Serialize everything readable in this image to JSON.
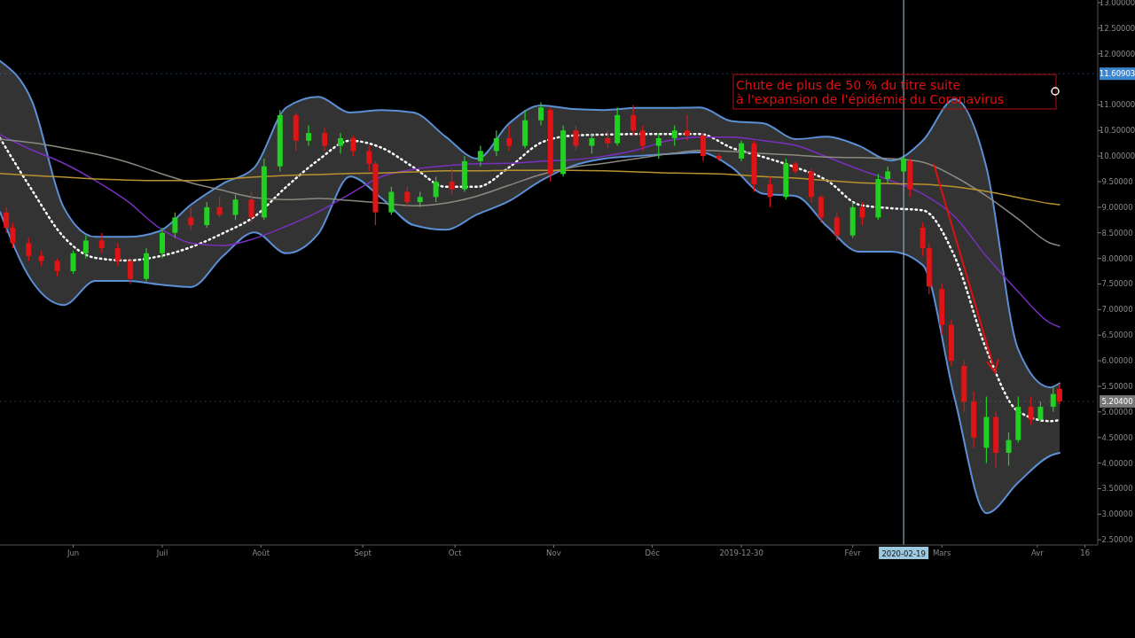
{
  "chart_data": {
    "type": "candlestick",
    "annotations": [
      "Chute de plus de 50 % du titre suite\nà l'expansion de l'épidémie du Coronavirus"
    ],
    "x": [
      "2019-05-11",
      "2019-05-21",
      "2019-05-31",
      "2019-06-10",
      "2019-06-20",
      "2019-06-30",
      "2019-07-10",
      "2019-07-20",
      "2019-07-30",
      "2019-08-09",
      "2019-08-19",
      "2019-08-29",
      "2019-09-08",
      "2019-09-18",
      "2019-09-28",
      "2019-10-08",
      "2019-10-18",
      "2019-10-28",
      "2019-11-07",
      "2019-11-17",
      "2019-11-27",
      "2019-12-07",
      "2019-12-17",
      "2019-12-27",
      "2020-01-06",
      "2020-01-16",
      "2020-01-26",
      "2020-02-05",
      "2020-02-15",
      "2020-02-25",
      "2020-03-06",
      "2020-03-16",
      "2020-03-26",
      "2020-04-05",
      "2020-04-08"
    ],
    "series": [
      {
        "x": [
          "2019-05-13",
          "2019-05-15",
          "2019-05-20",
          "2019-05-24",
          "2019-05-29",
          "2019-06-03",
          "2019-06-07",
          "2019-06-12",
          "2019-06-17",
          "2019-06-21",
          "2019-06-26",
          "2019-07-01",
          "2019-07-05",
          "2019-07-10",
          "2019-07-15",
          "2019-07-19",
          "2019-07-24",
          "2019-07-29",
          "2019-08-02",
          "2019-08-07",
          "2019-08-12",
          "2019-08-16",
          "2019-08-21",
          "2019-08-26",
          "2019-08-30",
          "2019-09-04",
          "2019-09-06",
          "2019-09-11",
          "2019-09-16",
          "2019-09-20",
          "2019-09-25",
          "2019-09-30",
          "2019-10-04",
          "2019-10-09",
          "2019-10-14",
          "2019-10-18",
          "2019-10-23",
          "2019-10-28",
          "2019-10-31",
          "2019-11-04",
          "2019-11-08",
          "2019-11-13",
          "2019-11-18",
          "2019-11-21",
          "2019-11-26",
          "2019-11-29",
          "2019-12-04",
          "2019-12-09",
          "2019-12-13",
          "2019-12-18",
          "2019-12-23",
          "2019-12-30",
          "2020-01-03",
          "2020-01-08",
          "2020-01-13",
          "2020-01-16",
          "2020-01-21",
          "2020-01-24",
          "2020-01-29",
          "2020-02-03",
          "2020-02-06",
          "2020-02-11",
          "2020-02-14",
          "2020-02-19",
          "2020-02-21",
          "2020-02-25",
          "2020-02-27",
          "2020-03-02",
          "2020-03-05",
          "2020-03-09",
          "2020-03-12",
          "2020-03-16",
          "2020-03-19",
          "2020-03-23",
          "2020-03-26",
          "2020-03-30",
          "2020-04-02",
          "2020-04-06",
          "2020-04-08"
        ],
        "ohlc": [
          [
            8.9,
            9.0,
            8.5,
            8.6
          ],
          [
            8.6,
            8.7,
            8.2,
            8.3
          ],
          [
            8.3,
            8.4,
            7.95,
            8.05
          ],
          [
            8.05,
            8.15,
            7.85,
            7.95
          ],
          [
            7.95,
            8.0,
            7.65,
            7.75
          ],
          [
            7.75,
            8.15,
            7.7,
            8.1
          ],
          [
            8.1,
            8.45,
            8.0,
            8.35
          ],
          [
            8.35,
            8.5,
            8.1,
            8.2
          ],
          [
            8.2,
            8.3,
            7.85,
            7.95
          ],
          [
            7.95,
            8.0,
            7.5,
            7.6
          ],
          [
            7.6,
            8.2,
            7.55,
            8.1
          ],
          [
            8.1,
            8.6,
            8.0,
            8.5
          ],
          [
            8.5,
            8.9,
            8.4,
            8.8
          ],
          [
            8.8,
            9.0,
            8.55,
            8.65
          ],
          [
            8.65,
            9.1,
            8.6,
            9.0
          ],
          [
            9.0,
            9.2,
            8.8,
            8.85
          ],
          [
            8.85,
            9.25,
            8.75,
            9.15
          ],
          [
            9.15,
            9.3,
            8.7,
            8.8
          ],
          [
            8.8,
            9.95,
            8.75,
            9.8
          ],
          [
            9.8,
            10.9,
            9.7,
            10.8
          ],
          [
            10.8,
            10.85,
            10.1,
            10.3
          ],
          [
            10.3,
            10.6,
            10.2,
            10.45
          ],
          [
            10.45,
            10.55,
            10.1,
            10.2
          ],
          [
            10.2,
            10.45,
            10.05,
            10.35
          ],
          [
            10.35,
            10.4,
            10.0,
            10.1
          ],
          [
            10.1,
            10.2,
            9.7,
            9.85
          ],
          [
            9.85,
            9.9,
            8.65,
            8.9
          ],
          [
            8.9,
            9.4,
            8.85,
            9.3
          ],
          [
            9.3,
            9.4,
            9.0,
            9.1
          ],
          [
            9.1,
            9.3,
            9.0,
            9.2
          ],
          [
            9.2,
            9.6,
            9.1,
            9.5
          ],
          [
            9.5,
            9.75,
            9.25,
            9.35
          ],
          [
            9.35,
            10.0,
            9.3,
            9.9
          ],
          [
            9.9,
            10.2,
            9.8,
            10.1
          ],
          [
            10.1,
            10.5,
            10.0,
            10.35
          ],
          [
            10.35,
            10.6,
            10.1,
            10.2
          ],
          [
            10.2,
            10.9,
            10.15,
            10.7
          ],
          [
            10.7,
            11.05,
            10.6,
            10.95
          ],
          [
            10.9,
            10.95,
            9.5,
            9.65
          ],
          [
            9.65,
            10.6,
            9.6,
            10.5
          ],
          [
            10.5,
            10.6,
            10.1,
            10.2
          ],
          [
            10.2,
            10.45,
            10.05,
            10.35
          ],
          [
            10.35,
            10.5,
            10.15,
            10.25
          ],
          [
            10.25,
            10.95,
            10.2,
            10.8
          ],
          [
            10.8,
            11.0,
            10.4,
            10.5
          ],
          [
            10.5,
            10.6,
            10.1,
            10.2
          ],
          [
            10.2,
            10.45,
            9.95,
            10.35
          ],
          [
            10.35,
            10.6,
            10.2,
            10.5
          ],
          [
            10.5,
            10.8,
            10.3,
            10.4
          ],
          [
            10.4,
            10.45,
            9.9,
            10.0
          ],
          [
            10.0,
            10.05,
            9.9,
            9.95
          ],
          [
            9.95,
            10.3,
            9.9,
            10.25
          ],
          [
            10.25,
            10.3,
            9.3,
            9.45
          ],
          [
            9.45,
            9.6,
            9.0,
            9.2
          ],
          [
            9.2,
            9.95,
            9.15,
            9.85
          ],
          [
            9.85,
            9.9,
            9.65,
            9.7
          ],
          [
            9.7,
            9.75,
            9.1,
            9.2
          ],
          [
            9.2,
            9.25,
            8.7,
            8.8
          ],
          [
            8.8,
            8.9,
            8.35,
            8.45
          ],
          [
            8.45,
            9.1,
            8.4,
            9.0
          ],
          [
            9.0,
            9.1,
            8.65,
            8.8
          ],
          [
            8.8,
            9.65,
            8.75,
            9.55
          ],
          [
            9.55,
            9.8,
            9.45,
            9.7
          ],
          [
            9.7,
            10.0,
            9.65,
            9.95
          ],
          [
            9.9,
            9.95,
            9.2,
            9.35
          ],
          [
            8.6,
            8.7,
            8.05,
            8.2
          ],
          [
            8.2,
            8.3,
            7.3,
            7.45
          ],
          [
            7.4,
            7.5,
            6.5,
            6.7
          ],
          [
            6.7,
            6.8,
            5.9,
            6.0
          ],
          [
            5.9,
            6.0,
            5.0,
            5.2
          ],
          [
            5.2,
            5.4,
            4.3,
            4.5
          ],
          [
            4.3,
            5.3,
            4.0,
            4.9
          ],
          [
            4.9,
            5.0,
            3.9,
            4.2
          ],
          [
            4.2,
            4.6,
            3.95,
            4.45
          ],
          [
            4.45,
            5.3,
            4.4,
            5.1
          ],
          [
            5.1,
            5.3,
            4.75,
            4.85
          ],
          [
            4.85,
            5.2,
            4.8,
            5.1
          ],
          [
            5.1,
            5.5,
            5.0,
            5.35
          ],
          [
            5.45,
            5.55,
            5.15,
            5.204
          ]
        ]
      },
      {
        "type": "line",
        "color": "#ffffff",
        "line_style": "dotted",
        "values": [
          10.35,
          9.34,
          8.42,
          8.01,
          7.96,
          8.04,
          8.22,
          8.49,
          8.82,
          9.4,
          9.92,
          10.3,
          10.16,
          9.78,
          9.4,
          9.4,
          9.78,
          10.26,
          10.4,
          10.42,
          10.43,
          10.43,
          10.43,
          10.16,
          9.98,
          9.78,
          9.52,
          9.05,
          8.98,
          8.94,
          8.04,
          6.22,
          5.01,
          4.82,
          4.84
        ],
        "upper": [
          11.86,
          11.08,
          9.0,
          8.42,
          8.42,
          8.53,
          9.05,
          9.46,
          9.78,
          10.95,
          11.16,
          10.85,
          10.9,
          10.85,
          10.38,
          9.95,
          10.64,
          10.99,
          10.92,
          10.9,
          10.94,
          10.94,
          10.95,
          10.68,
          10.64,
          10.33,
          10.38,
          10.2,
          9.91,
          10.3,
          11.11,
          9.78,
          6.22,
          5.48,
          5.56
        ],
        "lower": [
          8.91,
          7.56,
          7.09,
          7.56,
          7.56,
          7.49,
          7.44,
          8.04,
          8.51,
          8.1,
          8.48,
          9.6,
          9.17,
          8.65,
          8.56,
          8.86,
          9.12,
          9.52,
          9.81,
          9.95,
          10.0,
          10.04,
          10.07,
          9.78,
          9.26,
          9.22,
          8.62,
          8.13,
          8.13,
          7.87,
          5.27,
          3.02,
          3.62,
          4.14,
          4.2
        ]
      },
      {
        "type": "line",
        "color": "#5b8fd6",
        "line_style": "solid",
        "values": [
          11.86,
          11.08,
          9.0,
          8.42,
          8.42,
          8.53,
          9.05,
          9.46,
          9.78,
          10.95,
          11.16,
          10.85,
          10.9,
          10.85,
          10.38,
          9.95,
          10.64,
          10.99,
          10.92,
          10.9,
          10.94,
          10.94,
          10.95,
          10.68,
          10.64,
          10.33,
          10.38,
          10.2,
          9.91,
          10.3,
          11.11,
          9.78,
          6.22,
          5.48,
          5.56
        ]
      },
      {
        "type": "line",
        "color": "#5b8fd6",
        "line_style": "solid",
        "values": [
          8.91,
          7.56,
          7.09,
          7.56,
          7.56,
          7.49,
          7.44,
          8.04,
          8.51,
          8.1,
          8.48,
          9.6,
          9.17,
          8.65,
          8.56,
          8.86,
          9.12,
          9.52,
          9.81,
          9.95,
          10.0,
          10.04,
          10.07,
          9.78,
          9.26,
          9.22,
          8.62,
          8.13,
          8.13,
          7.87,
          5.27,
          3.02,
          3.62,
          4.14,
          4.2
        ]
      },
      {
        "type": "line",
        "color": "#7a2fc0",
        "line_style": "solid",
        "values": [
          10.42,
          10.12,
          9.86,
          9.52,
          9.12,
          8.6,
          8.3,
          8.25,
          8.39,
          8.63,
          8.91,
          9.26,
          9.6,
          9.74,
          9.81,
          9.85,
          9.86,
          9.9,
          9.93,
          10.0,
          10.12,
          10.3,
          10.37,
          10.37,
          10.3,
          10.21,
          9.98,
          9.74,
          9.52,
          9.26,
          8.82,
          8.04,
          7.35,
          6.74,
          6.66
        ]
      },
      {
        "type": "line",
        "color": "#8a8a80",
        "line_style": "solid",
        "values": [
          10.33,
          10.26,
          10.16,
          10.04,
          9.88,
          9.67,
          9.48,
          9.33,
          9.19,
          9.15,
          9.17,
          9.13,
          9.08,
          9.03,
          9.08,
          9.22,
          9.43,
          9.64,
          9.78,
          9.86,
          9.95,
          10.04,
          10.11,
          10.09,
          10.05,
          10.02,
          9.98,
          9.97,
          9.95,
          9.88,
          9.6,
          9.22,
          8.77,
          8.3,
          8.25
        ]
      },
      {
        "type": "line",
        "color": "#b8922e",
        "line_style": "solid",
        "values": [
          9.66,
          9.62,
          9.59,
          9.55,
          9.53,
          9.52,
          9.52,
          9.55,
          9.59,
          9.62,
          9.64,
          9.66,
          9.67,
          9.69,
          9.71,
          9.71,
          9.72,
          9.72,
          9.72,
          9.71,
          9.69,
          9.67,
          9.66,
          9.64,
          9.6,
          9.57,
          9.52,
          9.48,
          9.46,
          9.45,
          9.4,
          9.31,
          9.19,
          9.07,
          9.05
        ]
      }
    ],
    "xlim": [
      "2019-05-11",
      "2020-04-20"
    ],
    "xticks": [
      {
        "value": "2019-06-03",
        "label": "Jun"
      },
      {
        "value": "2019-07-01",
        "label": "Juil"
      },
      {
        "value": "2019-08-01",
        "label": "Août"
      },
      {
        "value": "2019-09-02",
        "label": "Sept"
      },
      {
        "value": "2019-10-01",
        "label": "Oct"
      },
      {
        "value": "2019-11-01",
        "label": "Nov"
      },
      {
        "value": "2019-12-02",
        "label": "Déc"
      },
      {
        "value": "2019-12-30",
        "label": "2019-12-30"
      },
      {
        "value": "2020-02-03",
        "label": "Févr"
      },
      {
        "value": "2020-03-02",
        "label": "Mars"
      },
      {
        "value": "2020-04-01",
        "label": "Avr"
      },
      {
        "value": "2020-04-16",
        "label": "16"
      }
    ],
    "ylim": [
      2.4,
      13.05
    ],
    "yticks": [
      {
        "value": 2.5,
        "label": "2.50000"
      },
      {
        "value": 3,
        "label": "3.00000"
      },
      {
        "value": 3.5,
        "label": "3.50000"
      },
      {
        "value": 4,
        "label": "4.00000"
      },
      {
        "value": 4.5,
        "label": "4.50000"
      },
      {
        "value": 5,
        "label": "5.00000"
      },
      {
        "value": 5.5,
        "label": "5.50000"
      },
      {
        "value": 6,
        "label": "6.00000"
      },
      {
        "value": 6.5,
        "label": "6.50000"
      },
      {
        "value": 7,
        "label": "7.00000"
      },
      {
        "value": 7.5,
        "label": "7.50000"
      },
      {
        "value": 8,
        "label": "8.00000"
      },
      {
        "value": 8.5,
        "label": "8.50000"
      },
      {
        "value": 9,
        "label": "9.00000"
      },
      {
        "value": 9.5,
        "label": "9.50000"
      },
      {
        "value": 10,
        "label": "10.00000"
      },
      {
        "value": 10.5,
        "label": "10.50000"
      },
      {
        "value": 11,
        "label": "11.00000"
      },
      {
        "value": 12,
        "label": "12.00000"
      },
      {
        "value": 12.5,
        "label": "12.50000"
      },
      {
        "value": 13,
        "label": "13.00000"
      }
    ],
    "ref_lines": [
      {
        "axis": "x",
        "value": "2020-02-19",
        "label": "2020-02-19",
        "color": "#9cc8e0",
        "line_style": "solid"
      },
      {
        "axis": "y",
        "value": 5.204,
        "label": "5.20400",
        "color": "#777777",
        "line_style": "dotted"
      },
      {
        "axis": "y",
        "value": 11.60903,
        "label": "11.60903",
        "color": "#3d86d0",
        "line_style": "dotted"
      }
    ],
    "grid": false
  }
}
